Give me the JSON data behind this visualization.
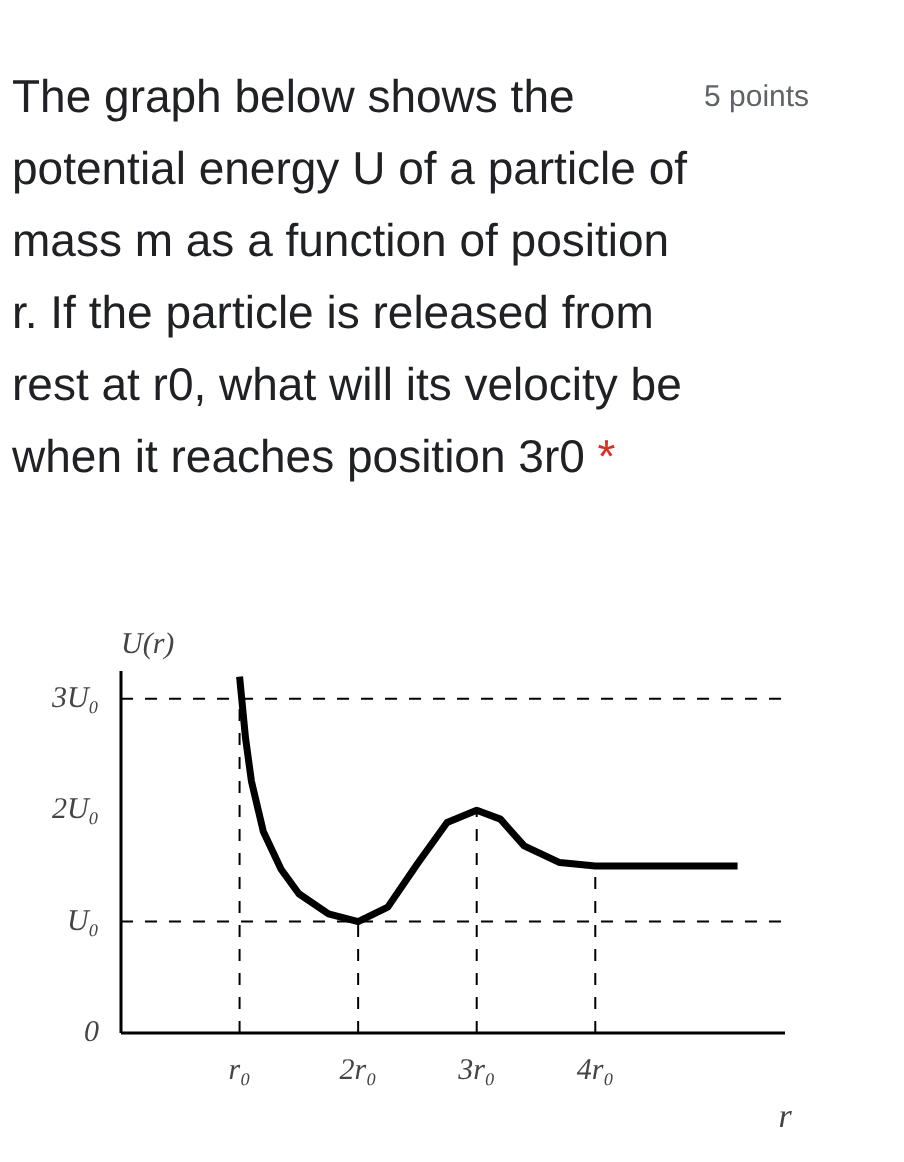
{
  "chart_data": {
    "type": "line",
    "title": "The graph below shows the potential energy U of a particle of mass m as a function of position r. If the particle is released from rest at r0, what will its velocity be when it reaches position 3r0",
    "annotations": [
      "5 points",
      "*"
    ],
    "xlabel": "r",
    "ylabel": "U(r)",
    "series": [
      {
        "color": "#000000",
        "x": [
          1.0,
          1.05,
          1.1,
          1.2,
          1.35,
          1.5,
          1.75,
          2.0,
          2.25,
          2.5,
          2.75,
          3.0,
          3.2,
          3.4,
          3.7,
          4.0,
          5.2
        ],
        "values": [
          3.2,
          2.65,
          2.26,
          1.81,
          1.47,
          1.25,
          1.07,
          1.0,
          1.13,
          1.52,
          1.89,
          2.0,
          1.92,
          1.68,
          1.53,
          1.5,
          1.5
        ]
      }
    ],
    "xlim": [
      0,
      5.6
    ],
    "ylim": [
      0,
      3.25
    ],
    "xticks": [
      {
        "value": 1,
        "label": "r₀"
      },
      {
        "value": 2,
        "label": "2r₀"
      },
      {
        "value": 3,
        "label": "3r₀"
      },
      {
        "value": 4,
        "label": "4r₀"
      }
    ],
    "yticks": [
      0,
      {
        "value": 1,
        "label": "U₀"
      },
      {
        "value": 2,
        "label": "2U₀"
      },
      {
        "value": 3,
        "label": "3U₀"
      }
    ],
    "ref_lines": [
      {
        "axis": "y",
        "value": 3,
        "line_style": "dashed"
      },
      {
        "axis": "y",
        "value": 1,
        "line_style": "dashed"
      },
      {
        "axis": "x",
        "value": 1,
        "line_style": "dashed"
      },
      {
        "axis": "x",
        "value": 2,
        "line_style": "dashed"
      },
      {
        "axis": "x",
        "value": 3,
        "line_style": "dashed"
      },
      {
        "axis": "x",
        "value": 4,
        "line_style": "dashed"
      }
    ],
    "grid": false,
    "marker": "none",
    "line_style": "solid"
  }
}
